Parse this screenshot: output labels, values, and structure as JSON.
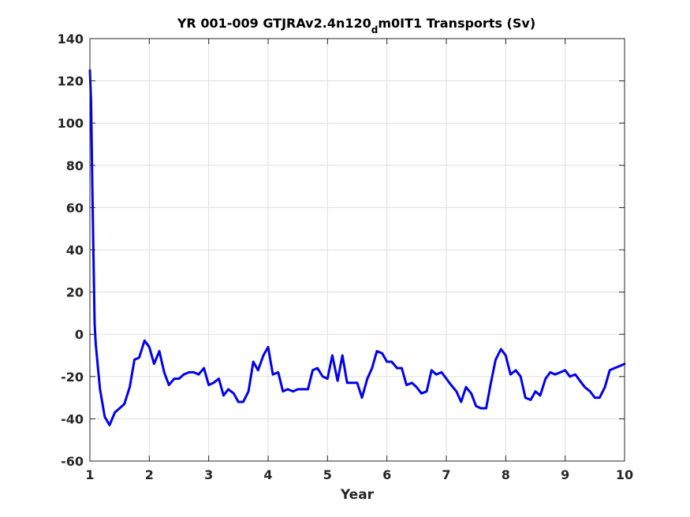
{
  "chart_data": {
    "type": "line",
    "title_main": "YR 001-009 GTJRAv2.4n120",
    "title_sub": "d",
    "title_tail": "m0IT1 Transports (Sv)",
    "xlabel": "Year",
    "ylabel": "",
    "xlim": [
      1,
      10
    ],
    "ylim": [
      -60,
      140
    ],
    "xticks": [
      1,
      2,
      3,
      4,
      5,
      6,
      7,
      8,
      9,
      10
    ],
    "yticks": [
      -60,
      -40,
      -20,
      0,
      20,
      40,
      60,
      80,
      100,
      120,
      140
    ],
    "grid": true,
    "series": [
      {
        "color": "#0000ee",
        "x": [
          1.0,
          1.02,
          1.04,
          1.06,
          1.08,
          1.1,
          1.17,
          1.25,
          1.33,
          1.42,
          1.5,
          1.58,
          1.67,
          1.75,
          1.83,
          1.92,
          2.0,
          2.08,
          2.17,
          2.25,
          2.33,
          2.42,
          2.5,
          2.58,
          2.67,
          2.75,
          2.83,
          2.92,
          3.0,
          3.08,
          3.17,
          3.25,
          3.33,
          3.42,
          3.5,
          3.58,
          3.67,
          3.75,
          3.83,
          3.92,
          4.0,
          4.08,
          4.17,
          4.25,
          4.33,
          4.42,
          4.5,
          4.58,
          4.67,
          4.75,
          4.83,
          4.92,
          5.0,
          5.08,
          5.17,
          5.25,
          5.33,
          5.42,
          5.5,
          5.58,
          5.67,
          5.75,
          5.83,
          5.92,
          6.0,
          6.08,
          6.17,
          6.25,
          6.33,
          6.42,
          6.5,
          6.58,
          6.67,
          6.75,
          6.83,
          6.92,
          7.0,
          7.08,
          7.17,
          7.25,
          7.33,
          7.42,
          7.5,
          7.58,
          7.67,
          7.75,
          7.83,
          7.92,
          8.0,
          8.08,
          8.17,
          8.25,
          8.33,
          8.42,
          8.5,
          8.58,
          8.67,
          8.75,
          8.83,
          8.92,
          9.0,
          9.08,
          9.17,
          9.25,
          9.33,
          9.42,
          9.5,
          9.58,
          9.67,
          9.75,
          9.83,
          9.92,
          10.0
        ],
        "y": [
          125,
          110,
          72,
          38,
          5,
          -5,
          -26,
          -39,
          -43,
          -37,
          -35,
          -33,
          -25,
          -12,
          -11,
          -3,
          -6,
          -14,
          -8,
          -18,
          -24,
          -21,
          -21,
          -19,
          -18,
          -18,
          -19,
          -16,
          -24,
          -23,
          -21,
          -29,
          -26,
          -28,
          -32,
          -32,
          -27,
          -13,
          -17,
          -10,
          -6,
          -19,
          -18,
          -27,
          -26,
          -27,
          -26,
          -26,
          -26,
          -17,
          -16,
          -20,
          -21,
          -10,
          -22,
          -10,
          -23,
          -23,
          -23,
          -30,
          -21,
          -16,
          -8,
          -9,
          -13,
          -13,
          -16,
          -16,
          -24,
          -23,
          -25,
          -28,
          -27,
          -17,
          -19,
          -18,
          -21,
          -24,
          -27,
          -32,
          -25,
          -28,
          -34,
          -35,
          -35,
          -23,
          -12,
          -7,
          -10,
          -19,
          -17,
          -20,
          -30,
          -31,
          -27,
          -29,
          -21,
          -18,
          -19,
          -18,
          -17,
          -20,
          -19,
          -22,
          -25,
          -27,
          -30,
          -30,
          -25,
          -17,
          -16,
          -15,
          -14
        ]
      }
    ]
  }
}
